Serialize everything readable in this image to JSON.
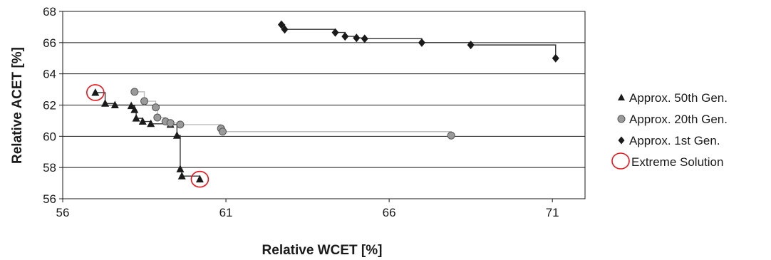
{
  "chart_data": {
    "type": "scatter",
    "xlabel": "Relative WCET [%]",
    "ylabel": "Relative ACET [%]",
    "xlim": [
      56,
      72
    ],
    "ylim": [
      56,
      68
    ],
    "x_ticks": [
      56,
      61,
      66,
      71
    ],
    "y_ticks": [
      56,
      58,
      60,
      62,
      64,
      66,
      68
    ],
    "grid": "horizontal",
    "legend_position": "right",
    "legend": [
      {
        "label": "Approx. 50th Gen.",
        "marker": "triangle",
        "color": "#1a1a1a"
      },
      {
        "label": "Approx. 20th Gen.",
        "marker": "circle",
        "color": "#999999"
      },
      {
        "label": "Approx. 1st Gen.",
        "marker": "diamond",
        "color": "#1a1a1a"
      },
      {
        "label": "Extreme Solution",
        "marker": "open-circle",
        "color": "#e8141c"
      }
    ],
    "series": [
      {
        "name": "Approx. 50th Gen.",
        "marker": "triangle",
        "step_line_color": "#333333",
        "points": [
          [
            57.0,
            62.8
          ],
          [
            57.3,
            62.1
          ],
          [
            57.6,
            62.0
          ],
          [
            58.1,
            61.95
          ],
          [
            58.2,
            61.7
          ],
          [
            58.25,
            61.15
          ],
          [
            58.45,
            60.95
          ],
          [
            58.7,
            60.8
          ],
          [
            59.3,
            60.75
          ],
          [
            59.5,
            60.05
          ],
          [
            59.6,
            57.9
          ],
          [
            59.65,
            57.45
          ],
          [
            60.2,
            57.25
          ]
        ]
      },
      {
        "name": "Approx. 20th Gen.",
        "marker": "circle",
        "step_line_color": "#bdbdbd",
        "points": [
          [
            58.2,
            62.85
          ],
          [
            58.5,
            62.25
          ],
          [
            58.85,
            61.85
          ],
          [
            58.9,
            61.2
          ],
          [
            59.15,
            60.95
          ],
          [
            59.3,
            60.85
          ],
          [
            59.6,
            60.75
          ],
          [
            60.85,
            60.5
          ],
          [
            60.9,
            60.3
          ],
          [
            67.9,
            60.05
          ]
        ]
      },
      {
        "name": "Approx. 1st Gen.",
        "marker": "diamond",
        "step_line_color": "#333333",
        "points": [
          [
            62.7,
            67.15
          ],
          [
            62.8,
            66.85
          ],
          [
            64.35,
            66.65
          ],
          [
            64.65,
            66.4
          ],
          [
            65.0,
            66.3
          ],
          [
            65.25,
            66.25
          ],
          [
            67.0,
            66.0
          ],
          [
            68.5,
            65.85
          ],
          [
            71.1,
            65.0
          ]
        ]
      }
    ],
    "extreme_solutions": [
      [
        57.0,
        62.8
      ],
      [
        60.2,
        57.25
      ]
    ]
  }
}
